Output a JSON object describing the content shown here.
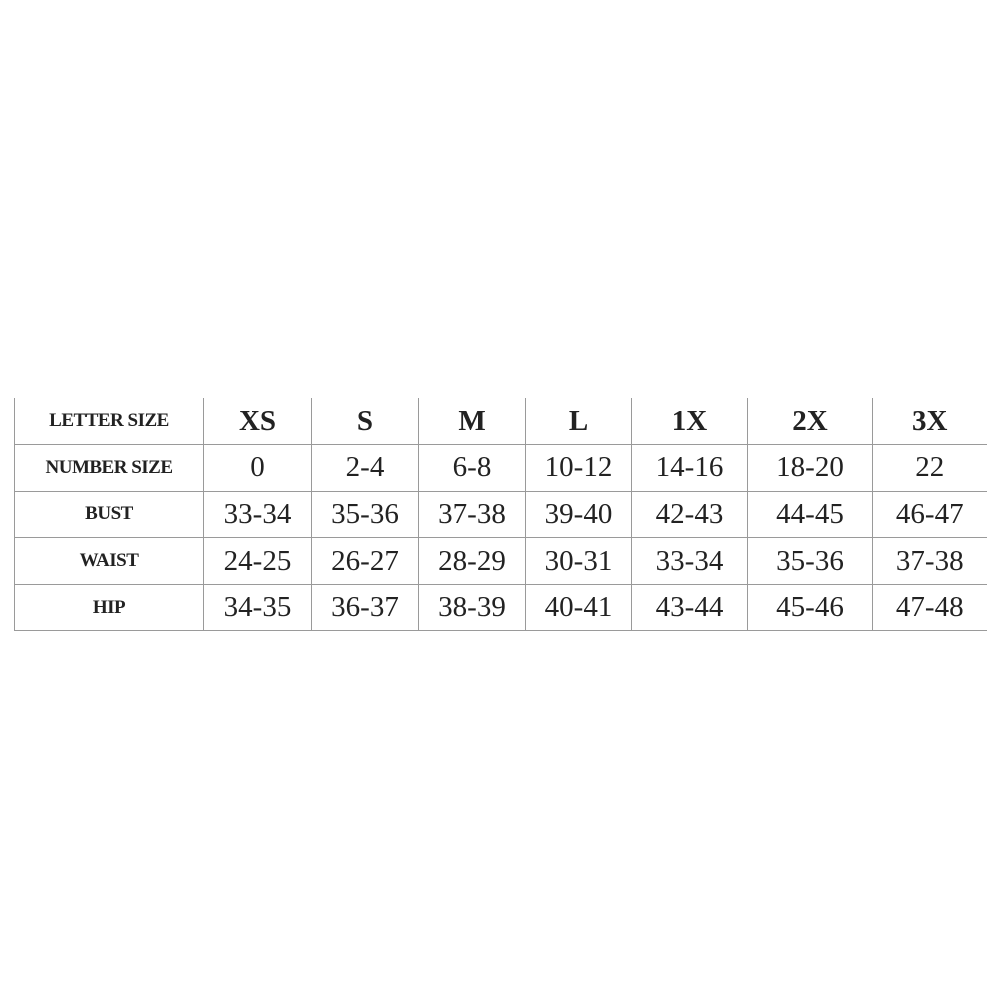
{
  "table": {
    "columns": [
      "XS",
      "S",
      "M",
      "L",
      "1X",
      "2X",
      "3X"
    ],
    "rows": [
      {
        "label": "LETTER SIZE",
        "values": [
          "XS",
          "S",
          "M",
          "L",
          "1X",
          "2X",
          "3X"
        ]
      },
      {
        "label": "NUMBER SIZE",
        "values": [
          "0",
          "2-4",
          "6-8",
          "10-12",
          "14-16",
          "18-20",
          "22"
        ]
      },
      {
        "label": "BUST",
        "values": [
          "33-34",
          "35-36",
          "37-38",
          "39-40",
          "42-43",
          "44-45",
          "46-47"
        ]
      },
      {
        "label": "WAIST",
        "values": [
          "24-25",
          "26-27",
          "28-29",
          "30-31",
          "33-34",
          "35-36",
          "37-38"
        ]
      },
      {
        "label": "HIP",
        "values": [
          "34-35",
          "36-37",
          "38-39",
          "40-41",
          "43-44",
          "45-46",
          "47-48"
        ]
      }
    ]
  }
}
